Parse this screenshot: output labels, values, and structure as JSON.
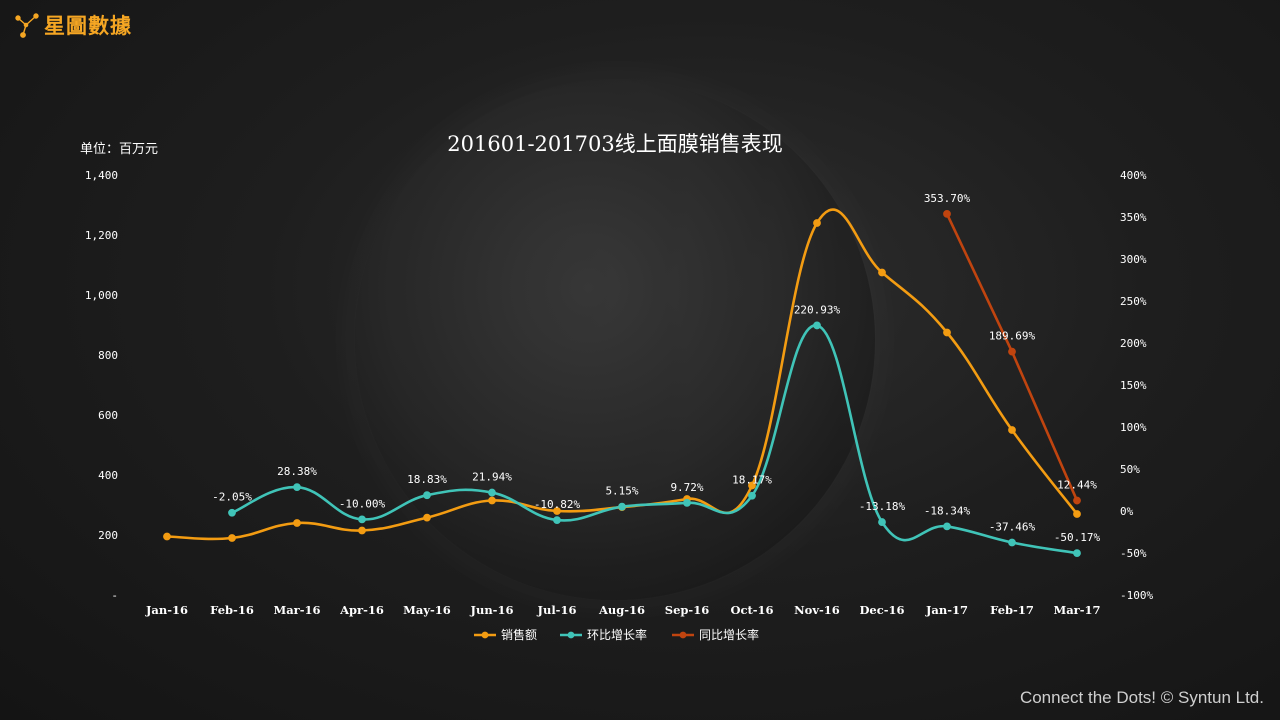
{
  "brand": {
    "name": "星圖數據",
    "color": "#f5a623"
  },
  "unit_label": "单位：百万元",
  "footer": "Connect the Dots! © Syntun Ltd.",
  "chart_data": {
    "type": "line",
    "title": "201601-201703线上面膜销售表现",
    "categories": [
      "Jan-16",
      "Feb-16",
      "Mar-16",
      "Apr-16",
      "May-16",
      "Jun-16",
      "Jul-16",
      "Aug-16",
      "Sep-16",
      "Oct-16",
      "Nov-16",
      "Dec-16",
      "Jan-17",
      "Feb-17",
      "Mar-17"
    ],
    "left_axis": {
      "min": 0,
      "max": 1400,
      "ticks": [
        "-",
        "200",
        "400",
        "600",
        "800",
        "1,000",
        "1,200",
        "1,400"
      ]
    },
    "right_axis": {
      "min": -100,
      "max": 400,
      "ticks": [
        "-100%",
        "-50%",
        "0%",
        "50%",
        "100%",
        "150%",
        "200%",
        "250%",
        "300%",
        "350%",
        "400%"
      ]
    },
    "series": [
      {
        "name": "销售额",
        "axis": "left",
        "color": "#f39c12",
        "values": [
          195,
          190,
          240,
          215,
          258,
          315,
          280,
          293,
          320,
          365,
          1240,
          1075,
          875,
          550,
          270
        ]
      },
      {
        "name": "环比增长率",
        "axis": "right",
        "color": "#40c4b8",
        "values": [
          null,
          -2.05,
          28.38,
          -10.0,
          18.83,
          21.94,
          -10.82,
          5.15,
          9.72,
          18.17,
          220.93,
          -13.18,
          -18.34,
          -37.46,
          -50.17
        ],
        "labels": [
          "",
          "-2.05%",
          "28.38%",
          "-10.00%",
          "18.83%",
          "21.94%",
          "-10.82%",
          "5.15%",
          "9.72%",
          "18.17%",
          "220.93%",
          "-13.18%",
          "-18.34%",
          "-37.46%",
          "-50.17%"
        ]
      },
      {
        "name": "同比增长率",
        "axis": "right",
        "color": "#c0440f",
        "values": [
          null,
          null,
          null,
          null,
          null,
          null,
          null,
          null,
          null,
          null,
          null,
          null,
          353.7,
          189.69,
          12.44
        ],
        "labels": [
          "",
          "",
          "",
          "",
          "",
          "",
          "",
          "",
          "",
          "",
          "",
          "",
          "353.70%",
          "189.69%",
          "12.44%"
        ]
      }
    ],
    "legend_position": "bottom",
    "grid": false
  }
}
